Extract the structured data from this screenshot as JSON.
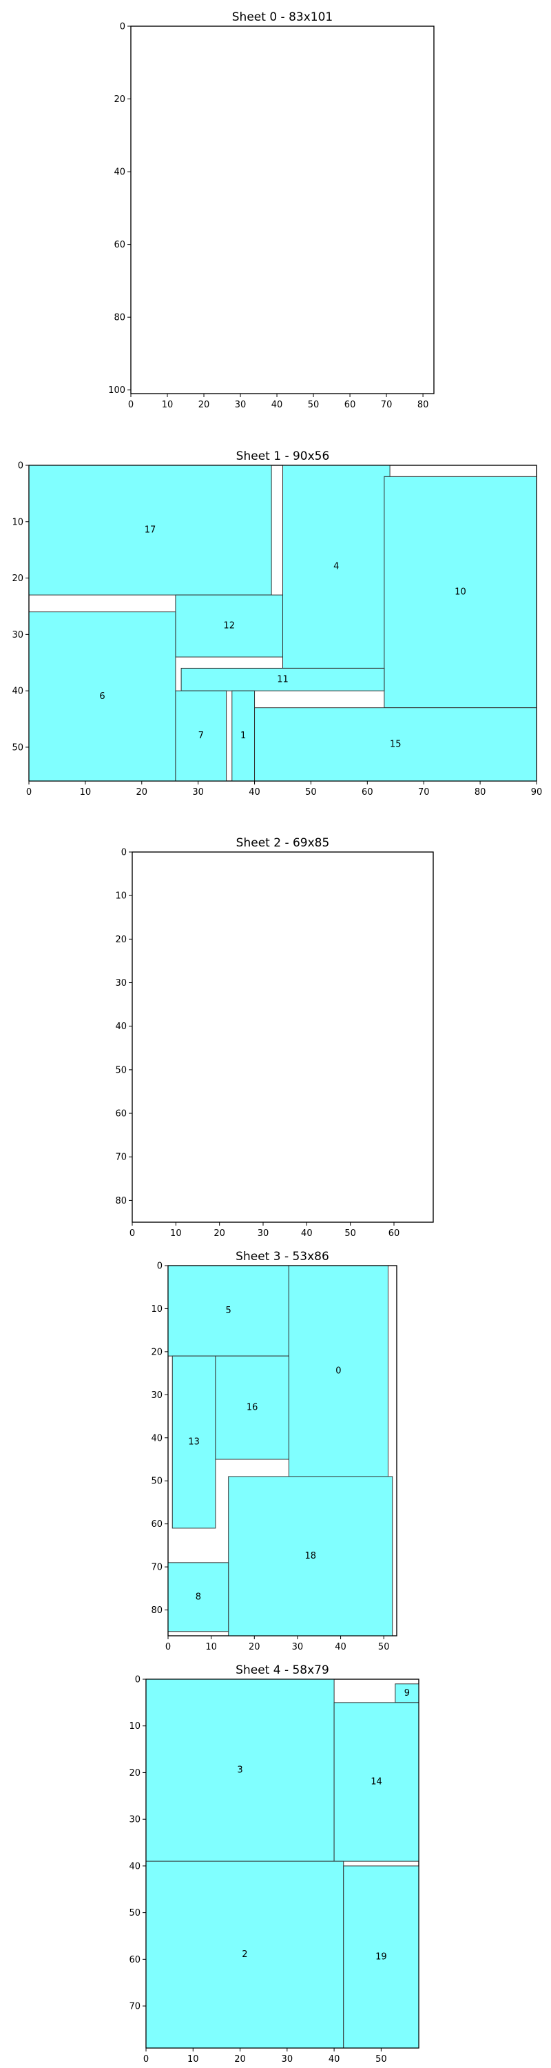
{
  "chart_data": [
    {
      "type": "rectangle-packing",
      "title": "Sheet 0 - 83x101",
      "xlim": [
        0,
        83
      ],
      "ylim": [
        0,
        101
      ],
      "y_inverted": true,
      "x_ticks": [
        0,
        10,
        20,
        30,
        40,
        50,
        60,
        70,
        80
      ],
      "y_ticks": [
        0,
        20,
        40,
        60,
        80,
        100
      ],
      "rects": []
    },
    {
      "type": "rectangle-packing",
      "title": "Sheet 1 - 90x56",
      "xlim": [
        0,
        90
      ],
      "ylim": [
        0,
        56
      ],
      "y_inverted": true,
      "x_ticks": [
        0,
        10,
        20,
        30,
        40,
        50,
        60,
        70,
        80,
        90
      ],
      "y_ticks": [
        0,
        10,
        20,
        30,
        40,
        50
      ],
      "rects": [
        {
          "label": "17",
          "x": 0,
          "y": 0,
          "w": 43,
          "h": 23
        },
        {
          "label": "4",
          "x": 45,
          "y": 0,
          "w": 19,
          "h": 36
        },
        {
          "label": "10",
          "x": 63,
          "y": 2,
          "w": 27,
          "h": 41
        },
        {
          "label": "12",
          "x": 26,
          "y": 23,
          "w": 19,
          "h": 11
        },
        {
          "label": "6",
          "x": 0,
          "y": 26,
          "w": 26,
          "h": 30
        },
        {
          "label": "11",
          "x": 27,
          "y": 36,
          "w": 36,
          "h": 4
        },
        {
          "label": "7",
          "x": 26,
          "y": 40,
          "w": 9,
          "h": 16
        },
        {
          "label": "1",
          "x": 36,
          "y": 40,
          "w": 4,
          "h": 16
        },
        {
          "label": "15",
          "x": 40,
          "y": 43,
          "w": 50,
          "h": 13
        }
      ]
    },
    {
      "type": "rectangle-packing",
      "title": "Sheet 2 - 69x85",
      "xlim": [
        0,
        69
      ],
      "ylim": [
        0,
        85
      ],
      "y_inverted": true,
      "x_ticks": [
        0,
        10,
        20,
        30,
        40,
        50,
        60
      ],
      "y_ticks": [
        0,
        10,
        20,
        30,
        40,
        50,
        60,
        70,
        80
      ],
      "rects": []
    },
    {
      "type": "rectangle-packing",
      "title": "Sheet 3 - 53x86",
      "xlim": [
        0,
        53
      ],
      "ylim": [
        0,
        86
      ],
      "y_inverted": true,
      "x_ticks": [
        0,
        10,
        20,
        30,
        40,
        50
      ],
      "y_ticks": [
        0,
        10,
        20,
        30,
        40,
        50,
        60,
        70,
        80
      ],
      "rects": [
        {
          "label": "5",
          "x": 0,
          "y": 0,
          "w": 28,
          "h": 21
        },
        {
          "label": "0",
          "x": 28,
          "y": 0,
          "w": 23,
          "h": 49
        },
        {
          "label": "13",
          "x": 1,
          "y": 21,
          "w": 10,
          "h": 40
        },
        {
          "label": "16",
          "x": 11,
          "y": 21,
          "w": 17,
          "h": 24
        },
        {
          "label": "18",
          "x": 14,
          "y": 49,
          "w": 38,
          "h": 37
        },
        {
          "label": "8",
          "x": 0,
          "y": 69,
          "w": 14,
          "h": 16
        }
      ]
    },
    {
      "type": "rectangle-packing",
      "title": "Sheet 4 - 58x79",
      "xlim": [
        0,
        58
      ],
      "ylim": [
        0,
        79
      ],
      "y_inverted": true,
      "x_ticks": [
        0,
        10,
        20,
        30,
        40,
        50
      ],
      "y_ticks": [
        0,
        10,
        20,
        30,
        40,
        50,
        60,
        70
      ],
      "rects": [
        {
          "label": "3",
          "x": 0,
          "y": 0,
          "w": 40,
          "h": 39
        },
        {
          "label": "9",
          "x": 53,
          "y": 1,
          "w": 5,
          "h": 4
        },
        {
          "label": "14",
          "x": 40,
          "y": 5,
          "w": 18,
          "h": 34
        },
        {
          "label": "2",
          "x": 0,
          "y": 39,
          "w": 42,
          "h": 40
        },
        {
          "label": "19",
          "x": 42,
          "y": 40,
          "w": 16,
          "h": 39
        }
      ]
    }
  ]
}
